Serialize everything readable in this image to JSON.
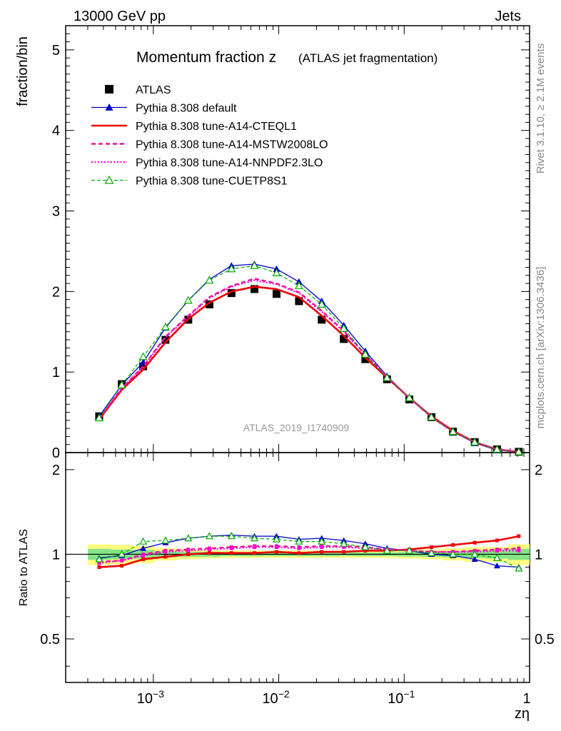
{
  "header": {
    "left": "13000 GeV pp",
    "right": "Jets"
  },
  "side_labels": {
    "rivet": "Rivet 3.1.10, ≥ 2.1M events",
    "mcplots": "mcplots.cern.ch [arXiv:1306.3436]"
  },
  "watermark": "ATLAS_2019_I1740909",
  "colors": {
    "atlas": "#000000",
    "default": "#0000cc",
    "cteql1": "#ee0000",
    "mstw": "#ee1493",
    "nnpdf": "#ff00dd",
    "cuetp8s1": "#00aa00",
    "band_yellow": "#ffff80",
    "band_green": "#66dd88"
  },
  "chart_data": [
    {
      "type": "line",
      "title_main": "Momentum fraction z",
      "title_sub": "(ATLAS jet fragmentation)",
      "ylabel": "fraction/bin",
      "xlabel": "zη",
      "xscale": "log",
      "xlim": [
        0.0002,
        1.0
      ],
      "ylim": [
        0,
        5.3
      ],
      "yticks": [
        "0",
        "1",
        "2",
        "3",
        "4",
        "5"
      ],
      "xticks": [
        "10^-3",
        "10^-2",
        "10^-1",
        "1"
      ],
      "legend": [
        "ATLAS",
        "Pythia 8.308 default",
        "Pythia 8.308 tune-A14-CTEQL1",
        "Pythia 8.308 tune-A14-MSTW2008LO",
        "Pythia 8.308 tune-A14-NNPDF2.3LO",
        "Pythia 8.308 tune-CUETP8S1"
      ],
      "x": [
        0.00037,
        0.00056,
        0.00083,
        0.00125,
        0.0019,
        0.0028,
        0.0042,
        0.0064,
        0.0096,
        0.0145,
        0.022,
        0.033,
        0.049,
        0.073,
        0.11,
        0.165,
        0.245,
        0.365,
        0.55,
        0.82
      ],
      "series": [
        {
          "name": "ATLAS",
          "values": [
            0.45,
            0.85,
            1.07,
            1.4,
            1.65,
            1.84,
            1.98,
            2.03,
            1.97,
            1.88,
            1.65,
            1.41,
            1.16,
            0.91,
            0.66,
            0.44,
            0.26,
            0.13,
            0.04,
            0.01
          ]
        },
        {
          "name": "Pythia 8.308 default",
          "values": [
            0.45,
            0.84,
            1.12,
            1.55,
            1.89,
            2.15,
            2.32,
            2.34,
            2.28,
            2.12,
            1.88,
            1.58,
            1.26,
            0.95,
            0.68,
            0.44,
            0.26,
            0.12,
            0.03,
            0.005
          ]
        },
        {
          "name": "Pythia 8.308 tune-A14-CTEQL1",
          "values": [
            0.41,
            0.78,
            1.03,
            1.37,
            1.66,
            1.86,
            2.0,
            2.06,
            2.03,
            1.93,
            1.7,
            1.45,
            1.18,
            0.93,
            0.68,
            0.45,
            0.27,
            0.13,
            0.04,
            0.01
          ]
        },
        {
          "name": "Pythia 8.308 tune-A14-MSTW2008LO",
          "values": [
            0.42,
            0.8,
            1.07,
            1.44,
            1.7,
            1.93,
            2.07,
            2.16,
            2.1,
            1.99,
            1.76,
            1.51,
            1.22,
            0.94,
            0.68,
            0.44,
            0.26,
            0.13,
            0.04,
            0.01
          ]
        },
        {
          "name": "Pythia 8.308 tune-A14-NNPDF2.3LO",
          "values": [
            0.42,
            0.8,
            1.06,
            1.43,
            1.69,
            1.92,
            2.06,
            2.14,
            2.09,
            1.98,
            1.75,
            1.5,
            1.22,
            0.94,
            0.68,
            0.44,
            0.26,
            0.13,
            0.04,
            0.01
          ]
        },
        {
          "name": "Pythia 8.308 tune-CUETP8S1",
          "values": [
            0.43,
            0.84,
            1.19,
            1.56,
            1.89,
            2.14,
            2.28,
            2.32,
            2.23,
            2.07,
            1.84,
            1.54,
            1.22,
            0.93,
            0.68,
            0.44,
            0.26,
            0.13,
            0.04,
            0.005
          ]
        }
      ]
    },
    {
      "type": "line",
      "ylabel": "Ratio to ATLAS",
      "xscale": "log",
      "xlim": [
        0.0002,
        1.0
      ],
      "ylim": [
        0.35,
        2.3
      ],
      "yticks": [
        "0.5",
        "1",
        "2"
      ],
      "band_note": "ATLAS uncertainty bands (yellow: total, green: stat)",
      "x": [
        0.00037,
        0.00056,
        0.00083,
        0.00125,
        0.0019,
        0.0028,
        0.0042,
        0.0064,
        0.0096,
        0.0145,
        0.022,
        0.033,
        0.049,
        0.073,
        0.11,
        0.165,
        0.245,
        0.365,
        0.55,
        0.82
      ],
      "series": [
        {
          "name": "Pythia 8.308 default",
          "values": [
            0.97,
            0.99,
            1.05,
            1.1,
            1.14,
            1.16,
            1.17,
            1.16,
            1.16,
            1.13,
            1.14,
            1.12,
            1.09,
            1.05,
            1.03,
            1.0,
            0.99,
            0.96,
            0.91,
            0.9
          ]
        },
        {
          "name": "Pythia 8.308 tune-A14-CTEQL1",
          "values": [
            0.9,
            0.91,
            0.96,
            0.98,
            1.0,
            1.01,
            1.01,
            1.01,
            1.02,
            1.01,
            1.02,
            1.02,
            1.03,
            1.03,
            1.04,
            1.06,
            1.08,
            1.1,
            1.12,
            1.16
          ]
        },
        {
          "name": "Pythia 8.308 tune-A14-MSTW2008LO",
          "values": [
            0.94,
            0.95,
            1.0,
            1.03,
            1.04,
            1.05,
            1.06,
            1.07,
            1.07,
            1.06,
            1.07,
            1.07,
            1.06,
            1.04,
            1.03,
            1.02,
            1.02,
            1.03,
            1.04,
            1.05
          ]
        },
        {
          "name": "Pythia 8.308 tune-A14-NNPDF2.3LO",
          "values": [
            0.93,
            0.95,
            0.99,
            1.02,
            1.03,
            1.04,
            1.05,
            1.06,
            1.06,
            1.05,
            1.06,
            1.06,
            1.05,
            1.04,
            1.03,
            1.02,
            1.02,
            1.02,
            1.03,
            1.03
          ]
        },
        {
          "name": "Pythia 8.308 tune-CUETP8S1",
          "values": [
            0.96,
            1.0,
            1.11,
            1.12,
            1.14,
            1.16,
            1.16,
            1.14,
            1.13,
            1.11,
            1.11,
            1.09,
            1.06,
            1.03,
            1.03,
            1.01,
            1.0,
            1.0,
            0.97,
            0.89
          ]
        }
      ]
    }
  ]
}
